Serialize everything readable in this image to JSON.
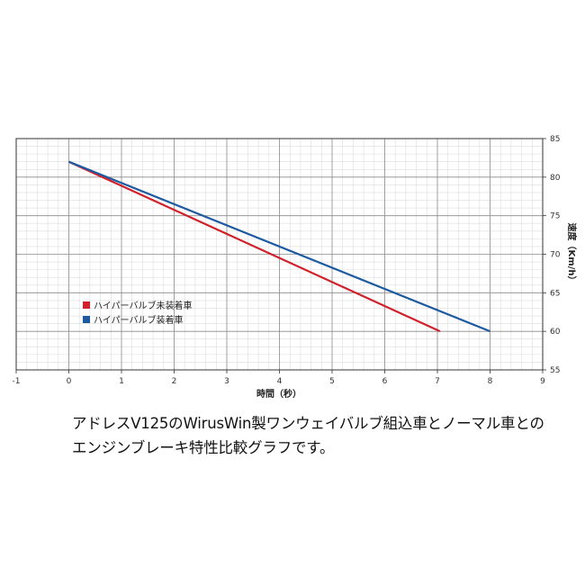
{
  "chart_data": {
    "type": "line",
    "xlabel": "時間（秒）",
    "ylabel": "速度（Km/h）",
    "xlim": [
      -1,
      9
    ],
    "ylim": [
      55,
      85
    ],
    "x_ticks": [
      "-1",
      "0",
      "1",
      "2",
      "3",
      "4",
      "5",
      "6",
      "7",
      "8",
      "9"
    ],
    "y_ticks": [
      "55",
      "60",
      "65",
      "70",
      "75",
      "80",
      "85"
    ],
    "grid": true,
    "minor_grid": true,
    "legend_position": "left-middle",
    "series": [
      {
        "name": "ハイパーバルブ未装着車",
        "color": "#d0202a",
        "x": [
          0,
          7.05
        ],
        "y": [
          82,
          60
        ]
      },
      {
        "name": "ハイパーバルブ装着車",
        "color": "#1d5aa0",
        "x": [
          0,
          8
        ],
        "y": [
          82,
          60
        ]
      }
    ]
  },
  "caption": {
    "line1": "アドレスV125のWirusWin製ワンウェイバルブ組込車とノーマル車との",
    "line2": "エンジンブレーキ特性比較グラフです。"
  }
}
